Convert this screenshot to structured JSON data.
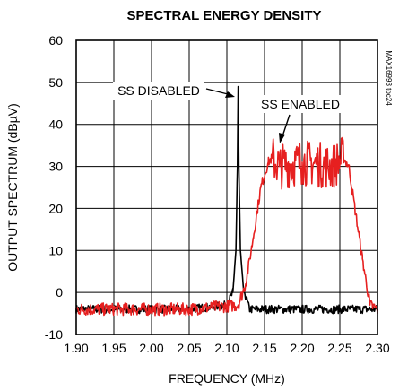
{
  "chart_data": {
    "type": "line",
    "title": "SPECTRAL ENERGY DENSITY",
    "xlabel": "FREQUENCY (MHz)",
    "ylabel": "OUTPUT SPECTRUM (dBµV)",
    "xlim": [
      1.9,
      2.3
    ],
    "ylim": [
      -10,
      60
    ],
    "x_ticks": [
      "1.90",
      "1.95",
      "2.00",
      "2.05",
      "2.10",
      "2.15",
      "2.20",
      "2.25",
      "2.30"
    ],
    "y_ticks": [
      "-10",
      "0",
      "10",
      "20",
      "30",
      "40",
      "50",
      "60"
    ],
    "grid": true,
    "legend": "none",
    "side_note": "MAX16993 toc24",
    "annotations": [
      {
        "text": "SS DISABLED",
        "series": "SS DISABLED"
      },
      {
        "text": "SS ENABLED",
        "series": "SS ENABLED"
      }
    ],
    "series": [
      {
        "name": "SS DISABLED",
        "color": "#000000",
        "x": [
          1.9,
          2.05,
          2.1,
          2.108,
          2.112,
          2.114,
          2.115,
          2.116,
          2.118,
          2.122,
          2.13,
          2.15,
          2.2,
          2.25,
          2.3
        ],
        "y": [
          -4,
          -4,
          -3,
          0,
          10,
          30,
          49,
          30,
          10,
          1,
          -4,
          -4,
          -4,
          -4,
          -4
        ]
      },
      {
        "name": "SS ENABLED",
        "color": "#e62020",
        "x": [
          1.9,
          2.05,
          2.115,
          2.125,
          2.135,
          2.145,
          2.155,
          2.16,
          2.17,
          2.2,
          2.24,
          2.255,
          2.262,
          2.27,
          2.28,
          2.29,
          2.3
        ],
        "y": [
          -4,
          -4,
          -3,
          2,
          13,
          25,
          31,
          32,
          30,
          31,
          30,
          32,
          30,
          20,
          8,
          -3,
          -4
        ]
      }
    ]
  }
}
